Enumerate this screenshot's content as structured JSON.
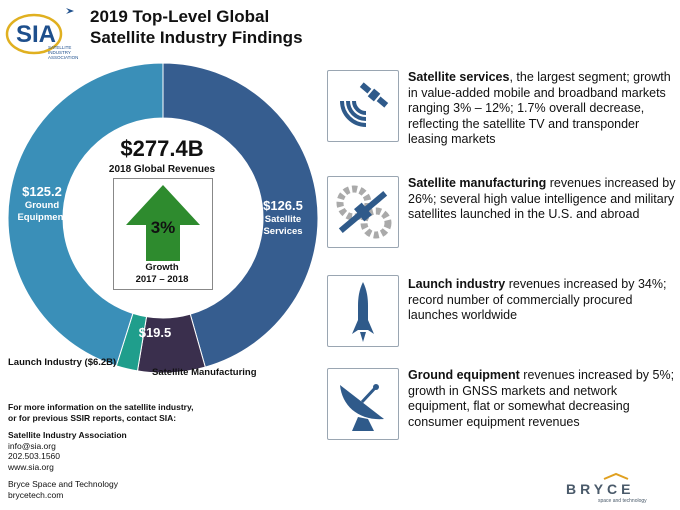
{
  "header": {
    "title_line1": "2019 Top-Level Global",
    "title_line2": "Satellite Industry Findings"
  },
  "logo": {
    "text": "SIA",
    "subtext_line1": "SATELLITE",
    "subtext_line2": "INDUSTRY",
    "subtext_line3": "ASSOCIATION"
  },
  "colors": {
    "satellite_services": "#365d8f",
    "ground_equipment": "#3a8fb8",
    "satellite_manufacturing": "#3a2f4d",
    "launch_industry": "#1f9e8c",
    "growth_arrow": "#2e8b2e",
    "icon_blue": "#2f5a8a"
  },
  "chart_data": {
    "type": "pie",
    "donut": true,
    "unit": "$B",
    "total_label": "$277.4B",
    "total_caption": "2018 Global Revenues",
    "segments": [
      {
        "name": "Satellite Services",
        "value": 126.5,
        "value_label": "$126.5",
        "color": "#365d8f"
      },
      {
        "name": "Satellite Manufacturing",
        "value": 19.5,
        "value_label": "$19.5",
        "color": "#3a2f4d"
      },
      {
        "name": "Launch Industry ($6.2B)",
        "value": 6.2,
        "value_label": "",
        "color": "#1f9e8c"
      },
      {
        "name": "Ground Equipment",
        "value": 125.2,
        "value_label": "$125.2",
        "color": "#3a8fb8"
      }
    ],
    "growth": {
      "value": "3%",
      "label_line1": "Growth",
      "label_line2": "2017 – 2018"
    }
  },
  "labels": {
    "services_value": "$126.5",
    "services_name_line1": "Satellite",
    "services_name_line2": "Services",
    "ground_value": "$125.2",
    "ground_name_line1": "Ground",
    "ground_name_line2": "Equipment",
    "manufacturing_value": "$19.5",
    "manufacturing_name": "Satellite Manufacturing",
    "launch_name": "Launch Industry ($6.2B)"
  },
  "findings": [
    {
      "bold": "Satellite services",
      "text": ", the largest segment; growth in value-added mobile and broadband markets ranging 3% – 12%; 1.7% overall decrease, reflecting the satellite TV and transponder leasing markets",
      "icon": "satellite-signal-icon"
    },
    {
      "bold": "Satellite manufacturing",
      "text": " revenues increased by 26%; several high value intelligence and military satellites launched in the U.S. and abroad",
      "icon": "satellite-gears-icon"
    },
    {
      "bold": "Launch industry",
      "text": " revenues increased by 34%; record number of commercially procured launches worldwide",
      "icon": "rocket-icon"
    },
    {
      "bold": "Ground equipment",
      "text": " revenues increased by 5%; growth in GNSS markets and network equipment, flat or somewhat decreasing consumer equipment revenues",
      "icon": "satellite-dish-icon"
    }
  ],
  "contact": {
    "line1": "For more information on the satellite industry,",
    "line2": "or for previous SSIR reports, contact SIA:",
    "org": "Satellite Industry Association",
    "email": "info@sia.org",
    "phone": "202.503.1560",
    "web": "www.sia.org",
    "org2": "Bryce Space and Technology",
    "web2": "brycetech.com"
  },
  "bryce": {
    "name": "BRYCE",
    "tagline": "space and technology"
  }
}
